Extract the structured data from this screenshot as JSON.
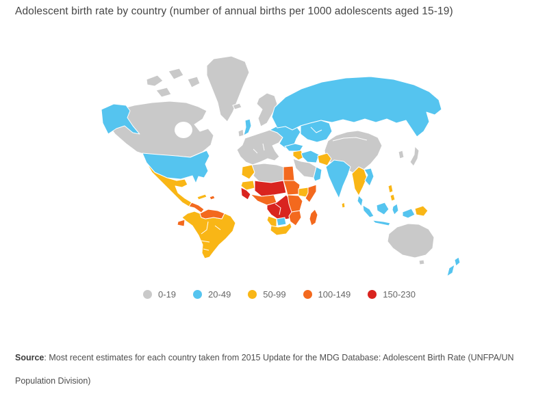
{
  "page": {
    "title": "Adolescent birth rate by country (number of annual births per 1000 adolescents aged 15-19)",
    "source_label": "Source",
    "source_text": ": Most recent estimates for each country taken from 2015 Update for the MDG Database: Adolescent Birth Rate (UNFPA/UN Population Division)"
  },
  "chart_data": {
    "type": "choropleth",
    "title": "Adolescent birth rate by country (number of annual births per 1000 adolescents aged 15-19)",
    "unit": "annual births per 1000 adolescents aged 15-19",
    "legend_position": "bottom-center",
    "legend": [
      {
        "label": "0-19",
        "color": "#c9c9c9"
      },
      {
        "label": "20-49",
        "color": "#55c4ef"
      },
      {
        "label": "50-99",
        "color": "#f9b616"
      },
      {
        "label": "100-149",
        "color": "#f3691e"
      },
      {
        "label": "150-230",
        "color": "#d9241f"
      }
    ],
    "source": "Most recent estimates for each country taken from 2015 Update for the MDG Database: Adolescent Birth Rate (UNFPA/UN Population Division)",
    "regions": [
      {
        "id": "greenland",
        "name": "Greenland",
        "category": "0-19"
      },
      {
        "id": "canada",
        "name": "Canada",
        "category": "0-19"
      },
      {
        "id": "alaska",
        "name": "Alaska (United States)",
        "category": "20-49"
      },
      {
        "id": "usa",
        "name": "United States",
        "category": "20-49"
      },
      {
        "id": "mexico",
        "name": "Mexico",
        "category": "50-99"
      },
      {
        "id": "central-america",
        "name": "Central America",
        "category": "100-149"
      },
      {
        "id": "cuba",
        "name": "Cuba",
        "category": "50-99"
      },
      {
        "id": "hispaniola",
        "name": "Hispaniola",
        "category": "100-149"
      },
      {
        "id": "venezuela-guyanas",
        "name": "Venezuela & Guianas",
        "category": "100-149"
      },
      {
        "id": "ecuador",
        "name": "Ecuador",
        "category": "100-149"
      },
      {
        "id": "south-america",
        "name": "South America (Brazil, Andes, Southern Cone)",
        "category": "50-99"
      },
      {
        "id": "iceland",
        "name": "Iceland",
        "category": "0-19"
      },
      {
        "id": "ireland",
        "name": "Ireland",
        "category": "0-19"
      },
      {
        "id": "uk",
        "name": "United Kingdom",
        "category": "20-49"
      },
      {
        "id": "scandinavia",
        "name": "Scandinavia",
        "category": "0-19"
      },
      {
        "id": "europe-west",
        "name": "Western & Central Europe",
        "category": "0-19"
      },
      {
        "id": "europe-east",
        "name": "Eastern Europe",
        "category": "20-49"
      },
      {
        "id": "russia",
        "name": "Russia",
        "category": "20-49"
      },
      {
        "id": "central-asia",
        "name": "Central Asia",
        "category": "20-49"
      },
      {
        "id": "turkey",
        "name": "Turkey",
        "category": "20-49"
      },
      {
        "id": "iraq-syria",
        "name": "Iraq & Syria",
        "category": "50-99"
      },
      {
        "id": "iran",
        "name": "Iran",
        "category": "20-49"
      },
      {
        "id": "saudi-arabia",
        "name": "Saudi Arabia",
        "category": "0-19"
      },
      {
        "id": "yemen-oman",
        "name": "Yemen & Oman",
        "category": "20-49"
      },
      {
        "id": "afghanistan",
        "name": "Afghanistan",
        "category": "50-99"
      },
      {
        "id": "china",
        "name": "China & Mongolia",
        "category": "0-19"
      },
      {
        "id": "korea",
        "name": "Korea",
        "category": "0-19"
      },
      {
        "id": "japan",
        "name": "Japan",
        "category": "0-19"
      },
      {
        "id": "india",
        "name": "India",
        "category": "20-49"
      },
      {
        "id": "sri-lanka",
        "name": "Sri Lanka",
        "category": "50-99"
      },
      {
        "id": "se-asia-mainland",
        "name": "Myanmar & Thailand",
        "category": "50-99"
      },
      {
        "id": "vietnam",
        "name": "Vietnam",
        "category": "20-49"
      },
      {
        "id": "malay-peninsula",
        "name": "Malaysia",
        "category": "20-49"
      },
      {
        "id": "philippines",
        "name": "Philippines",
        "category": "50-99"
      },
      {
        "id": "indonesia",
        "name": "Indonesia",
        "category": "20-49"
      },
      {
        "id": "papua-new-guinea",
        "name": "Papua New Guinea",
        "category": "50-99"
      },
      {
        "id": "morocco",
        "name": "Morocco",
        "category": "50-99"
      },
      {
        "id": "north-africa",
        "name": "Algeria & Libya",
        "category": "0-19"
      },
      {
        "id": "egypt",
        "name": "Egypt",
        "category": "100-149"
      },
      {
        "id": "mauritania",
        "name": "Mauritania",
        "category": "50-99"
      },
      {
        "id": "sahel",
        "name": "Mali, Niger & Chad",
        "category": "150-230"
      },
      {
        "id": "sudan",
        "name": "Sudan",
        "category": "100-149"
      },
      {
        "id": "senegal-guinea",
        "name": "Senegal & Guinea",
        "category": "150-230"
      },
      {
        "id": "gulf-of-guinea",
        "name": "Nigeria & Gulf of Guinea coast",
        "category": "100-149"
      },
      {
        "id": "ethiopia",
        "name": "Ethiopia",
        "category": "50-99"
      },
      {
        "id": "horn-of-africa",
        "name": "Somalia (Horn of Africa)",
        "category": "100-149"
      },
      {
        "id": "central-africa",
        "name": "DR Congo, Angola & Zambia",
        "category": "150-230"
      },
      {
        "id": "east-africa",
        "name": "Kenya & Tanzania",
        "category": "100-149"
      },
      {
        "id": "namibia",
        "name": "Namibia",
        "category": "50-99"
      },
      {
        "id": "botswana",
        "name": "Botswana",
        "category": "20-49"
      },
      {
        "id": "mozambique-zimbabwe",
        "name": "Mozambique & Zimbabwe",
        "category": "100-149"
      },
      {
        "id": "south-africa",
        "name": "South Africa",
        "category": "50-99"
      },
      {
        "id": "madagascar",
        "name": "Madagascar",
        "category": "100-149"
      },
      {
        "id": "australia",
        "name": "Australia",
        "category": "0-19"
      },
      {
        "id": "new-zealand",
        "name": "New Zealand",
        "category": "20-49"
      }
    ]
  }
}
